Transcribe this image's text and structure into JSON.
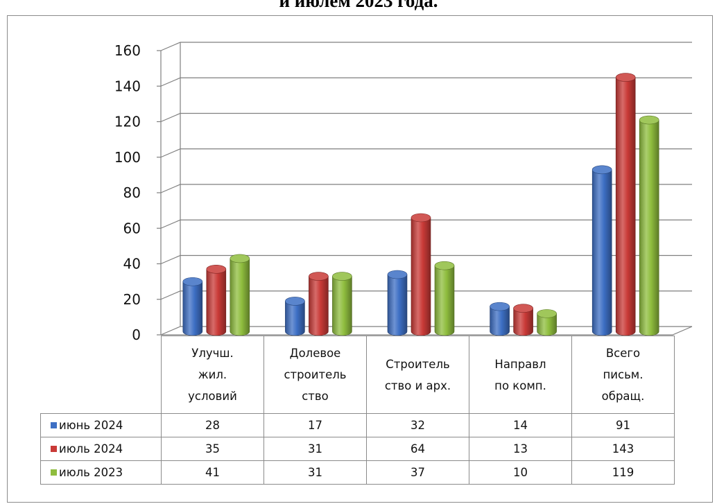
{
  "page": {
    "title": "и июлем 2023 года."
  },
  "chart_data": {
    "type": "bar",
    "style": "3d-cylinder",
    "title": "и июлем 2023 года.",
    "categories": [
      [
        "Улучш.",
        "жил.",
        "условий"
      ],
      [
        "Долевое",
        "строитель",
        "ство"
      ],
      [
        "Строитель",
        "ство и арх."
      ],
      [
        "Направл",
        "по комп."
      ],
      [
        "Всего",
        "письм.",
        "обращ."
      ]
    ],
    "series": [
      {
        "name": "июнь 2024",
        "color": "#3d6fc4",
        "values": [
          28,
          17,
          32,
          14,
          91
        ]
      },
      {
        "name": "июль 2024",
        "color": "#c93a37",
        "values": [
          35,
          31,
          64,
          13,
          143
        ]
      },
      {
        "name": "июль 2023",
        "color": "#8fbd3e",
        "values": [
          41,
          31,
          37,
          10,
          119
        ]
      }
    ],
    "ylim": [
      0,
      160
    ],
    "yticks": [
      0,
      20,
      40,
      60,
      80,
      100,
      120,
      140,
      160
    ],
    "grid": true,
    "legend": "data-table",
    "xlabel": "",
    "ylabel": ""
  }
}
